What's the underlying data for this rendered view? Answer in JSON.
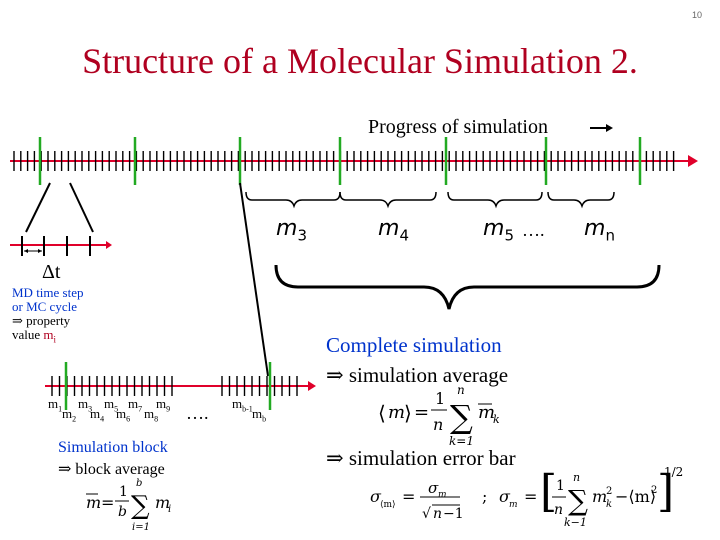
{
  "slide": {
    "number": "10",
    "title": "Structure of a Molecular Simulation 2.",
    "progress_label": "Progress of simulation",
    "delta_t": "Δt",
    "md_note": {
      "line1": "MD time step",
      "line2": "or MC cycle",
      "line3": "⇒ property",
      "line4a": "value ",
      "line4b": "m",
      "line4c": "i"
    },
    "top_labels": [
      {
        "base": "m",
        "sub": "3"
      },
      {
        "base": "m",
        "sub": "4"
      },
      {
        "base": "m",
        "sub": "5"
      },
      {
        "base": "m",
        "sub": "n"
      }
    ],
    "dots": "….",
    "complete": {
      "line1": "Complete simulation",
      "line2": "⇒ simulation average"
    },
    "errbar": "⇒ simulation error bar",
    "simblock": {
      "line1": "Simulation block",
      "line2": "⇒ block average"
    },
    "block_labels": {
      "top": [
        "m1",
        "m3",
        "m5",
        "m7",
        "m9"
      ],
      "bottom": [
        "m2",
        "m4",
        "m6",
        "m8"
      ],
      "end_top": "mb-1",
      "end_bottom": "mb"
    },
    "colors": {
      "title": "#b00020",
      "axis_arrow": "#e0002a",
      "green_tick": "#22aa22",
      "blue_text": "#0033cc"
    }
  }
}
